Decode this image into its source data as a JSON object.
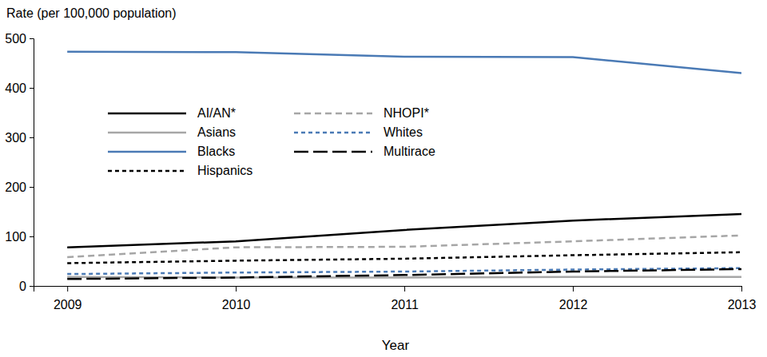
{
  "chart_data": {
    "type": "line",
    "y_label": "Rate (per 100,000 population)",
    "x_label": "Year",
    "x": [
      2009,
      2010,
      2011,
      2012,
      2013
    ],
    "xlim": [
      2008.8,
      2013
    ],
    "xticks": [
      2009,
      2010,
      2011,
      2012,
      2013
    ],
    "ylim": [
      0,
      500
    ],
    "yticks": [
      0,
      100,
      200,
      300,
      400,
      500
    ],
    "grid": false,
    "legend": "upper left",
    "series": [
      {
        "name": "AI/AN*",
        "color": "#000000",
        "line_style": "solid",
        "values": [
          78,
          90,
          113,
          132,
          145
        ]
      },
      {
        "name": "Asians",
        "color": "#a6a6a6",
        "line_style": "solid",
        "values": [
          18,
          17,
          17,
          18,
          18
        ]
      },
      {
        "name": "Blacks",
        "color": "#4a7ab5",
        "line_style": "solid",
        "values": [
          473,
          472,
          463,
          462,
          430
        ]
      },
      {
        "name": "Hispanics",
        "color": "#000000",
        "line_style": "dotted",
        "values": [
          46,
          51,
          55,
          62,
          68
        ]
      },
      {
        "name": "NHOPI*",
        "color": "#a6a6a6",
        "line_style": "dashed",
        "values": [
          58,
          78,
          79,
          90,
          102
        ]
      },
      {
        "name": "Whites",
        "color": "#4a7ab5",
        "line_style": "dotted",
        "values": [
          24,
          27,
          29,
          33,
          36
        ]
      },
      {
        "name": "Multirace",
        "color": "#000000",
        "line_style": "longdash",
        "values": [
          14,
          17,
          22,
          29,
          34
        ]
      }
    ]
  }
}
